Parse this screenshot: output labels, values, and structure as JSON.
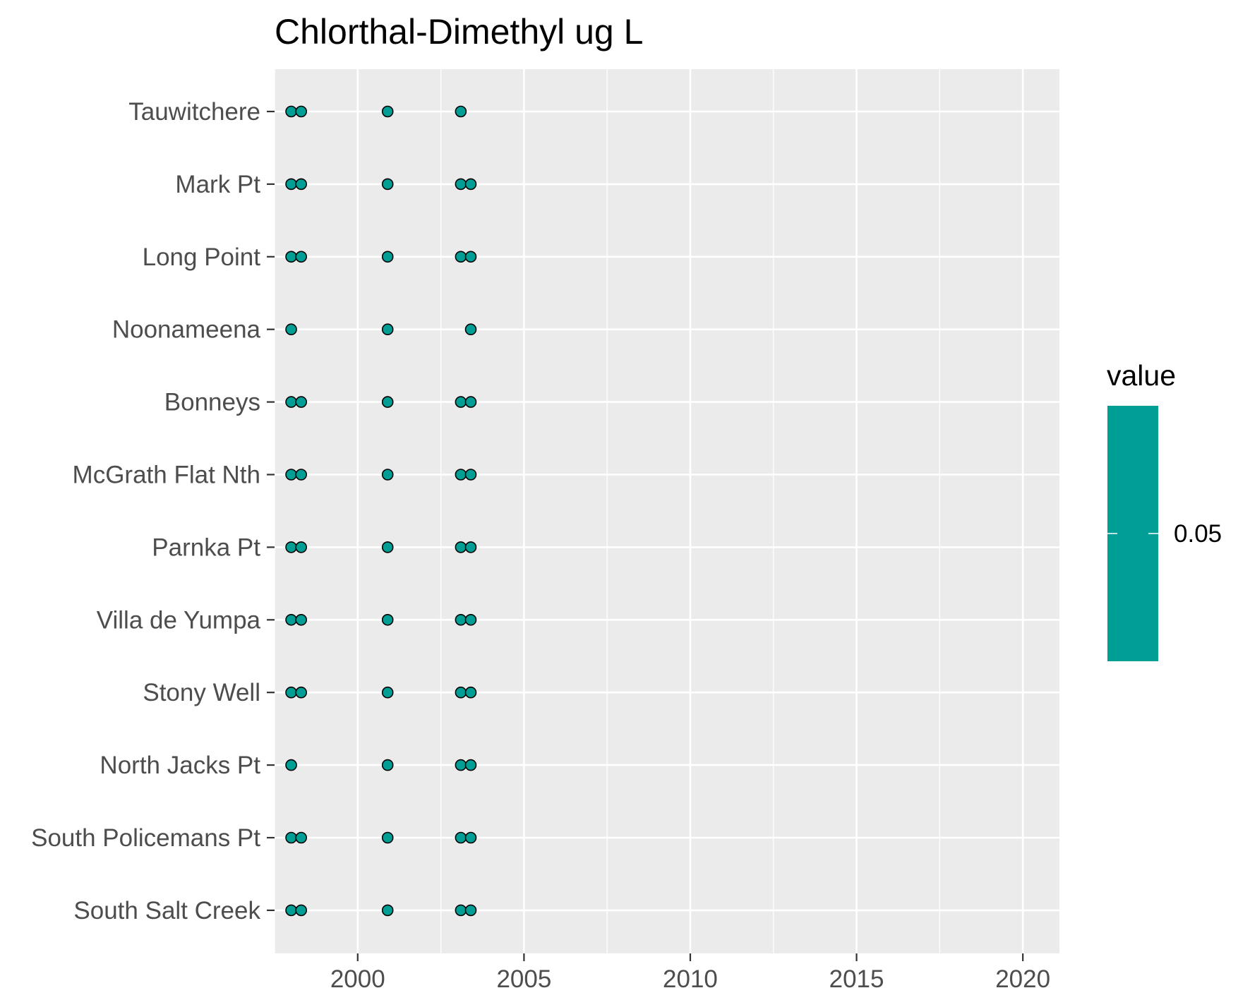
{
  "chart_data": {
    "type": "scatter",
    "title": "Chlorthal-Dimethyl ug L",
    "xlabel": "",
    "ylabel": "",
    "x_ticks": [
      2000,
      2005,
      2010,
      2015,
      2020
    ],
    "xlim": [
      1997.5,
      2021.1
    ],
    "grid": true,
    "sites": [
      "South Salt Creek",
      "South Policemans Pt",
      "North Jacks Pt",
      "Stony Well",
      "Villa de Yumpa",
      "Parnka Pt",
      "McGrath Flat Nth",
      "Bonneys",
      "Noonameena",
      "Long Point",
      "Mark Pt",
      "Tauwitchere"
    ],
    "points": {
      "Tauwitchere": [
        1998.0,
        1998.3,
        2000.9,
        2003.1
      ],
      "Mark Pt": [
        1998.0,
        1998.3,
        2000.9,
        2003.1,
        2003.4
      ],
      "Long Point": [
        1998.0,
        1998.3,
        2000.9,
        2003.1,
        2003.4
      ],
      "Noonameena": [
        1998.0,
        2000.9,
        2003.4
      ],
      "Bonneys": [
        1998.0,
        1998.3,
        2000.9,
        2003.1,
        2003.4
      ],
      "McGrath Flat Nth": [
        1998.0,
        1998.3,
        2000.9,
        2003.1,
        2003.4
      ],
      "Parnka Pt": [
        1998.0,
        1998.3,
        2000.9,
        2003.1,
        2003.4
      ],
      "Villa de Yumpa": [
        1998.0,
        1998.3,
        2000.9,
        2003.1,
        2003.4
      ],
      "Stony Well": [
        1998.0,
        1998.3,
        2000.9,
        2003.1,
        2003.4
      ],
      "North Jacks Pt": [
        1998.0,
        2000.9,
        2003.1,
        2003.4
      ],
      "South Policemans Pt": [
        1998.0,
        1998.3,
        2000.9,
        2003.1,
        2003.4
      ],
      "South Salt Creek": [
        1998.0,
        1998.3,
        2000.9,
        2003.1,
        2003.4
      ]
    },
    "point_value": 0.05,
    "point_color": "#009E94",
    "legend": {
      "title": "value",
      "label": "0.05",
      "placement": "right",
      "color": "#009E94"
    },
    "panel_background": "#EBEBEB",
    "grid_color": "#FFFFFF"
  }
}
